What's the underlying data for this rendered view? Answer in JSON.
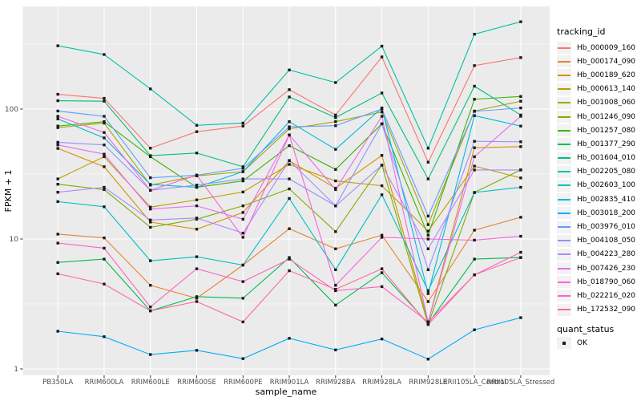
{
  "chart_data": {
    "type": "line",
    "title": "",
    "xlabel": "sample_name",
    "ylabel": "FPKM + 1",
    "y_scale": "log10",
    "y_ticks": [
      1,
      10,
      100
    ],
    "y_minor_ticks": [
      3.1623,
      31.623,
      316.23
    ],
    "ylim": [
      0.9,
      620
    ],
    "grid": true,
    "panel_bg": "#EBEBEB",
    "grid_color": "#FFFFFF",
    "point_color": "#1a1a1a",
    "tick_label_color": "#4D4D4D",
    "legend_title": "tracking_id",
    "legend_position": "right",
    "legend2": {
      "title": "quant_status",
      "items": [
        "OK"
      ]
    },
    "categories": [
      "PB350LA",
      "RRIM600LA",
      "RRIM600LE",
      "RRIM600SE",
      "RRIM600PE",
      "RRIM901LA",
      "RRIM928BA",
      "RRIM928LA",
      "RRIM928LE",
      "RRII105LA_Control",
      "RRII105LA_Stressed"
    ],
    "series": [
      {
        "name": "Hb_000009_160",
        "color": "#F8766D",
        "values": [
          130,
          121,
          50,
          67,
          74,
          141,
          90,
          252,
          39,
          216,
          249
        ]
      },
      {
        "name": "Hb_000174_090",
        "color": "#EA8331",
        "values": [
          10.9,
          10.2,
          4.4,
          3.5,
          6.3,
          12,
          8.4,
          10.7,
          3.3,
          11.7,
          14.7
        ]
      },
      {
        "name": "Hb_000189_620",
        "color": "#D89000",
        "values": [
          49.8,
          36,
          13.5,
          11.9,
          16,
          40,
          24.6,
          44,
          2.3,
          50.4,
          51.4
        ]
      },
      {
        "name": "Hb_000613_140",
        "color": "#C09B00",
        "values": [
          29,
          43,
          17.6,
          20,
          23,
          37.5,
          28,
          25.7,
          11.5,
          36.4,
          29.5
        ]
      },
      {
        "name": "Hb_001008_060",
        "color": "#A3A500",
        "values": [
          72,
          78,
          26,
          30.6,
          33,
          70.5,
          80,
          95,
          12.9,
          96.6,
          115
        ]
      },
      {
        "name": "Hb_001246_090",
        "color": "#7CAE00",
        "values": [
          26.4,
          24,
          12.3,
          14.2,
          18,
          24.3,
          11.4,
          37,
          2.2,
          22.8,
          34
        ]
      },
      {
        "name": "Hb_001257_080",
        "color": "#39B600",
        "values": [
          74,
          80,
          43,
          25,
          28,
          52.3,
          34.3,
          77,
          10.7,
          119,
          125
        ]
      },
      {
        "name": "Hb_001377_290",
        "color": "#00BB4E",
        "values": [
          6.6,
          7,
          2.8,
          3.6,
          3.5,
          7.2,
          3.1,
          5.5,
          2.24,
          7,
          7.2
        ]
      },
      {
        "name": "Hb_001604_010",
        "color": "#00BF7D",
        "values": [
          116,
          115,
          43.8,
          45.9,
          36,
          124,
          86,
          133,
          29,
          150,
          90
        ]
      },
      {
        "name": "Hb_002205_080",
        "color": "#00C1A3",
        "values": [
          307,
          263,
          143,
          75,
          78,
          200,
          160,
          305,
          50,
          377,
          470
        ]
      },
      {
        "name": "Hb_002603_100",
        "color": "#00BFC4",
        "values": [
          19.4,
          17.7,
          6.8,
          7.3,
          6.3,
          20.5,
          5.8,
          21.9,
          4,
          22.8,
          25
        ]
      },
      {
        "name": "Hb_002835_410",
        "color": "#00BAE0",
        "values": [
          84,
          60,
          26.3,
          25,
          33,
          80,
          49,
          102,
          3.8,
          89,
          74
        ]
      },
      {
        "name": "Hb_003018_200",
        "color": "#00ADFA",
        "values": [
          1.95,
          1.77,
          1.29,
          1.39,
          1.2,
          1.72,
          1.4,
          1.7,
          1.19,
          2,
          2.48
        ]
      },
      {
        "name": "Hb_003976_010",
        "color": "#619CFF",
        "values": [
          96.6,
          88,
          29.6,
          31,
          35,
          73,
          74.5,
          100,
          15,
          96,
          102
        ]
      },
      {
        "name": "Hb_004108_050",
        "color": "#9590FF",
        "values": [
          55.5,
          53,
          23.7,
          26,
          29,
          29,
          18,
          77,
          5.8,
          56.5,
          56
        ]
      },
      {
        "name": "Hb_004223_280",
        "color": "#AE87FF",
        "values": [
          22.9,
          25,
          14,
          14.5,
          11.1,
          40.2,
          18,
          37,
          8.4,
          34,
          34
        ]
      },
      {
        "name": "Hb_007426_230",
        "color": "#E76BF3",
        "values": [
          53,
          45,
          17,
          18,
          14.2,
          63.3,
          24,
          88,
          2.3,
          43,
          88
        ]
      },
      {
        "name": "Hb_018790_060",
        "color": "#FA62DB",
        "values": [
          88,
          66,
          23.7,
          31,
          10.3,
          63,
          4.4,
          10.3,
          10,
          9.8,
          10.5
        ]
      },
      {
        "name": "Hb_022216_020",
        "color": "#FF61C3",
        "values": [
          9.3,
          8.5,
          3,
          5.9,
          4.7,
          7,
          4,
          4.3,
          2.3,
          5.3,
          7.9
        ]
      },
      {
        "name": "Hb_172532_090",
        "color": "#FF6A98",
        "values": [
          5.4,
          4.5,
          2.8,
          3.3,
          2.3,
          5.7,
          4.1,
          5.9,
          2.2,
          5.3,
          7.2
        ]
      }
    ]
  }
}
